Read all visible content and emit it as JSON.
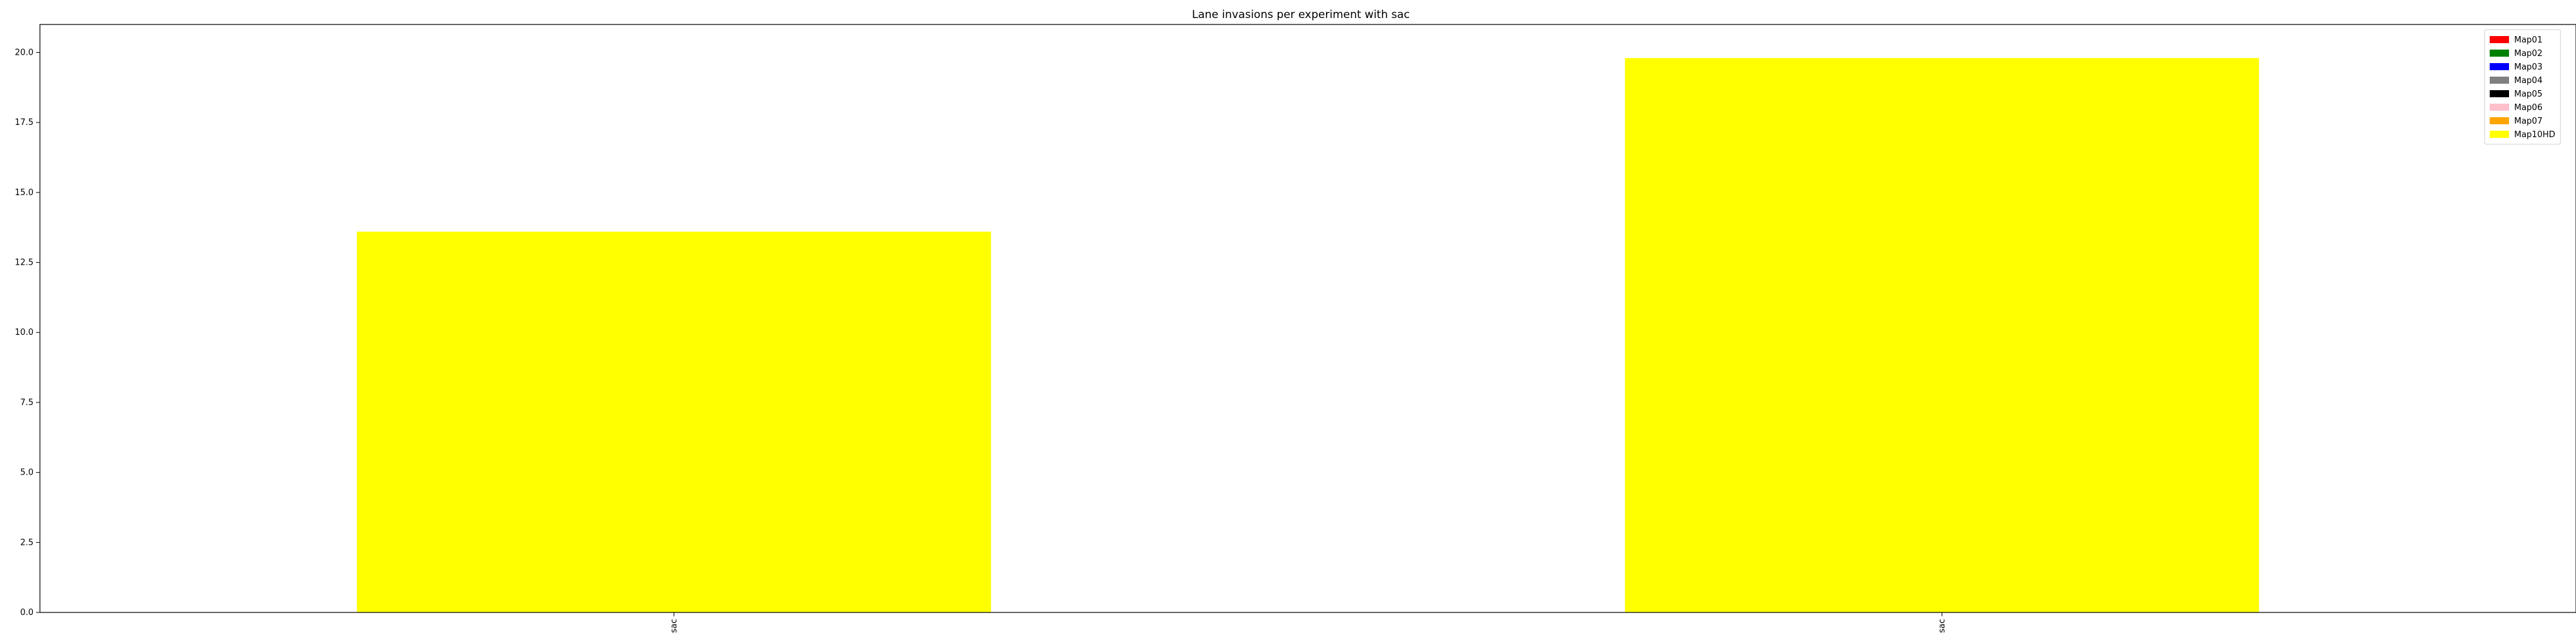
{
  "chart_data": {
    "type": "bar",
    "title": "Lane invasions per experiment with sac",
    "xlabel": "",
    "ylabel": "",
    "categories": [
      "sac",
      "sac"
    ],
    "ylim": [
      0,
      21
    ],
    "yticks": [
      "0.0",
      "2.5",
      "5.0",
      "7.5",
      "10.0",
      "12.5",
      "15.0",
      "17.5",
      "20.0"
    ],
    "grid": false,
    "legend_position": "top-right",
    "series": [
      {
        "name": "Map01",
        "color": "#ff0000",
        "values": [
          0,
          0
        ]
      },
      {
        "name": "Map02",
        "color": "#008000",
        "values": [
          0,
          0
        ]
      },
      {
        "name": "Map03",
        "color": "#0000ff",
        "values": [
          0,
          0
        ]
      },
      {
        "name": "Map04",
        "color": "#808080",
        "values": [
          0,
          0
        ]
      },
      {
        "name": "Map05",
        "color": "#000000",
        "values": [
          0,
          0
        ]
      },
      {
        "name": "Map06",
        "color": "#ffc0cb",
        "values": [
          0,
          0
        ]
      },
      {
        "name": "Map07",
        "color": "#ffa500",
        "values": [
          0,
          0
        ]
      },
      {
        "name": "Map10HD",
        "color": "#ffff00",
        "values": [
          13.6,
          19.8
        ]
      }
    ]
  }
}
